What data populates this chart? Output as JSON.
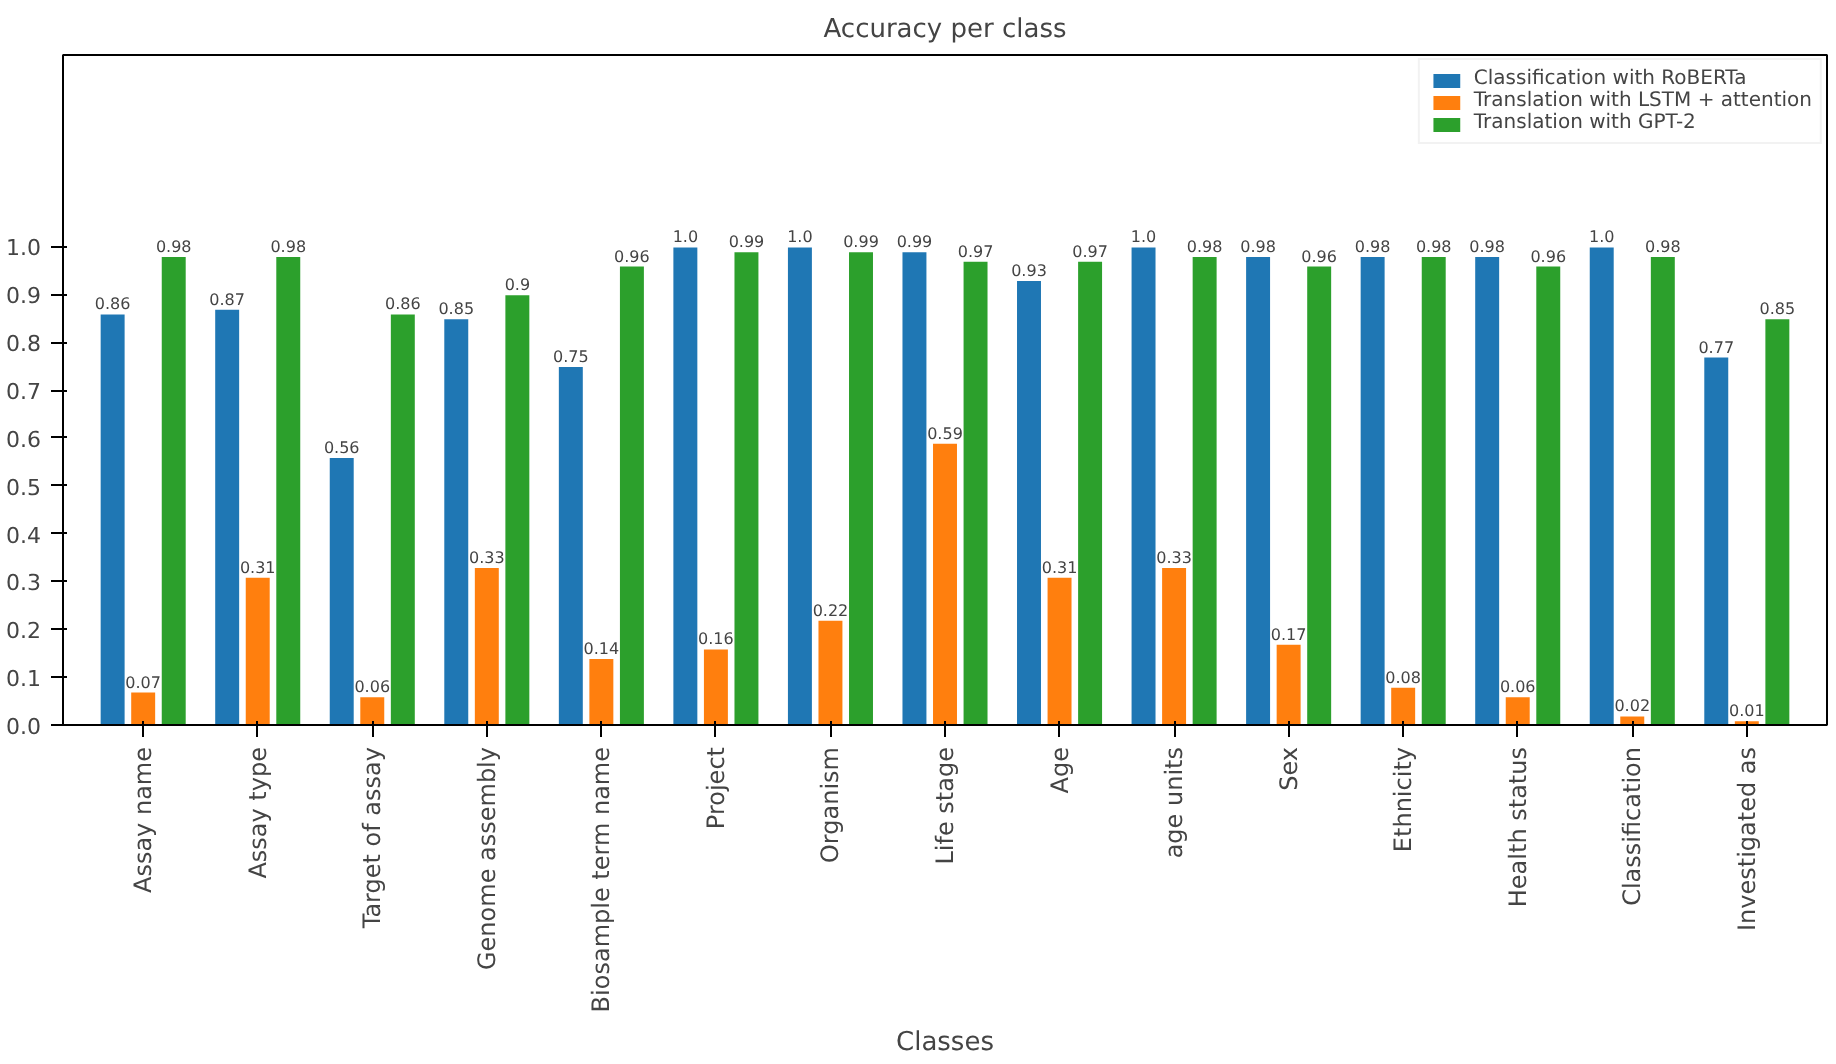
{
  "chart_data": {
    "type": "bar",
    "title": "Accuracy per class",
    "xlabel": "Classes",
    "categories": [
      "Assay name",
      "Assay type",
      "Target of assay",
      "Genome assembly",
      "Biosample term name",
      "Project",
      "Organism",
      "Life stage",
      "Age",
      "age units",
      "Sex",
      "Ethnicity",
      "Health status",
      "Classification",
      "Investigated as"
    ],
    "series": [
      {
        "name": "Classification with RoBERTa",
        "color": "#1f77b4",
        "values": [
          0.86,
          0.87,
          0.56,
          0.85,
          0.75,
          1.0,
          1.0,
          0.99,
          0.93,
          1.0,
          0.98,
          0.98,
          0.98,
          1.0,
          0.77
        ],
        "value_labels": [
          "0.86",
          "0.87",
          "0.56",
          "0.85",
          "0.75",
          "1.0",
          "1.0",
          "0.99",
          "0.93",
          "1.0",
          "0.98",
          "0.98",
          "0.98",
          "1.0",
          "0.77"
        ]
      },
      {
        "name": "Translation with LSTM + attention",
        "color": "#ff7f0e",
        "values": [
          0.07,
          0.31,
          0.06,
          0.33,
          0.14,
          0.16,
          0.22,
          0.59,
          0.31,
          0.33,
          0.17,
          0.08,
          0.06,
          0.02,
          0.01
        ],
        "value_labels": [
          "0.07",
          "0.31",
          "0.06",
          "0.33",
          "0.14",
          "0.16",
          "0.22",
          "0.59",
          "0.31",
          "0.33",
          "0.17",
          "0.08",
          "0.06",
          "0.02",
          "0.01"
        ]
      },
      {
        "name": "Translation with GPT-2",
        "color": "#2ca02c",
        "values": [
          0.98,
          0.98,
          0.86,
          0.9,
          0.96,
          0.99,
          0.99,
          0.97,
          0.97,
          0.98,
          0.96,
          0.98,
          0.96,
          0.98,
          0.85
        ],
        "value_labels": [
          "0.98",
          "0.98",
          "0.86",
          "0.9",
          "0.96",
          "0.99",
          "0.99",
          "0.97",
          "0.97",
          "0.98",
          "0.96",
          "0.98",
          "0.96",
          "0.98",
          "0.85"
        ]
      }
    ],
    "ylim": [
      0,
      1.4
    ],
    "yticks": [
      {
        "value": 0,
        "label": "0.0"
      },
      0.1,
      0.2,
      0.3,
      0.4,
      0.5,
      0.6,
      0.7,
      0.8,
      0.9,
      {
        "value": 1,
        "label": "1.0"
      }
    ],
    "legend": "top right",
    "grid": false
  }
}
